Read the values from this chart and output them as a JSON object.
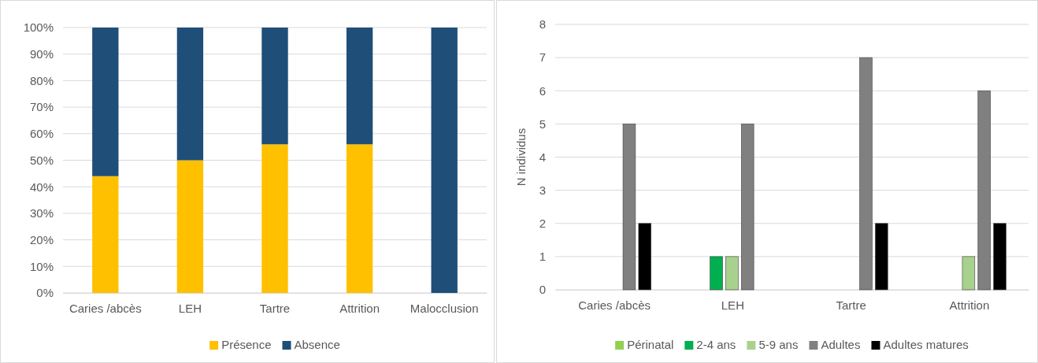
{
  "chart_data": [
    {
      "type": "bar",
      "stacked": true,
      "categories": [
        "Caries /abcès",
        "LEH",
        "Tartre",
        "Attrition",
        "Malocclusion"
      ],
      "series": [
        {
          "name": "Présence",
          "color": "#ffc000",
          "values": [
            44,
            50,
            56,
            56,
            0
          ]
        },
        {
          "name": "Absence",
          "color": "#1f4e79",
          "values": [
            56,
            50,
            44,
            44,
            100
          ]
        }
      ],
      "ylim": [
        0,
        100
      ],
      "yticks": [
        {
          "value": 0,
          "label": "0%"
        },
        {
          "value": 10,
          "label": "10%"
        },
        {
          "value": 20,
          "label": "20%"
        },
        {
          "value": 30,
          "label": "30%"
        },
        {
          "value": 40,
          "label": "40%"
        },
        {
          "value": 50,
          "label": "50%"
        },
        {
          "value": 60,
          "label": "60%"
        },
        {
          "value": 70,
          "label": "70%"
        },
        {
          "value": 80,
          "label": "80%"
        },
        {
          "value": 90,
          "label": "90%"
        },
        {
          "value": 100,
          "label": "100%"
        }
      ],
      "grid": "y",
      "legend": "bottom"
    },
    {
      "type": "bar",
      "categories": [
        "Caries /abcès",
        "LEH",
        "Tartre",
        "Attrition"
      ],
      "ylabel": "N individus",
      "series": [
        {
          "name": "Périnatal",
          "color": "#92d050",
          "values": [
            0,
            0,
            0,
            0
          ]
        },
        {
          "name": "2-4 ans",
          "color": "#00b050",
          "values": [
            0,
            1,
            0,
            0
          ]
        },
        {
          "name": "5-9 ans",
          "color": "#a9d18e",
          "values": [
            0,
            1,
            0,
            1
          ]
        },
        {
          "name": "Adultes",
          "color": "#808080",
          "values": [
            5,
            5,
            7,
            6
          ]
        },
        {
          "name": "Adultes matures",
          "color": "#000000",
          "values": [
            2,
            0,
            2,
            2
          ]
        }
      ],
      "ylim": [
        0,
        8
      ],
      "yticks": [
        0,
        1,
        2,
        3,
        4,
        5,
        6,
        7,
        8
      ],
      "grid": "y",
      "legend": "bottom"
    }
  ]
}
